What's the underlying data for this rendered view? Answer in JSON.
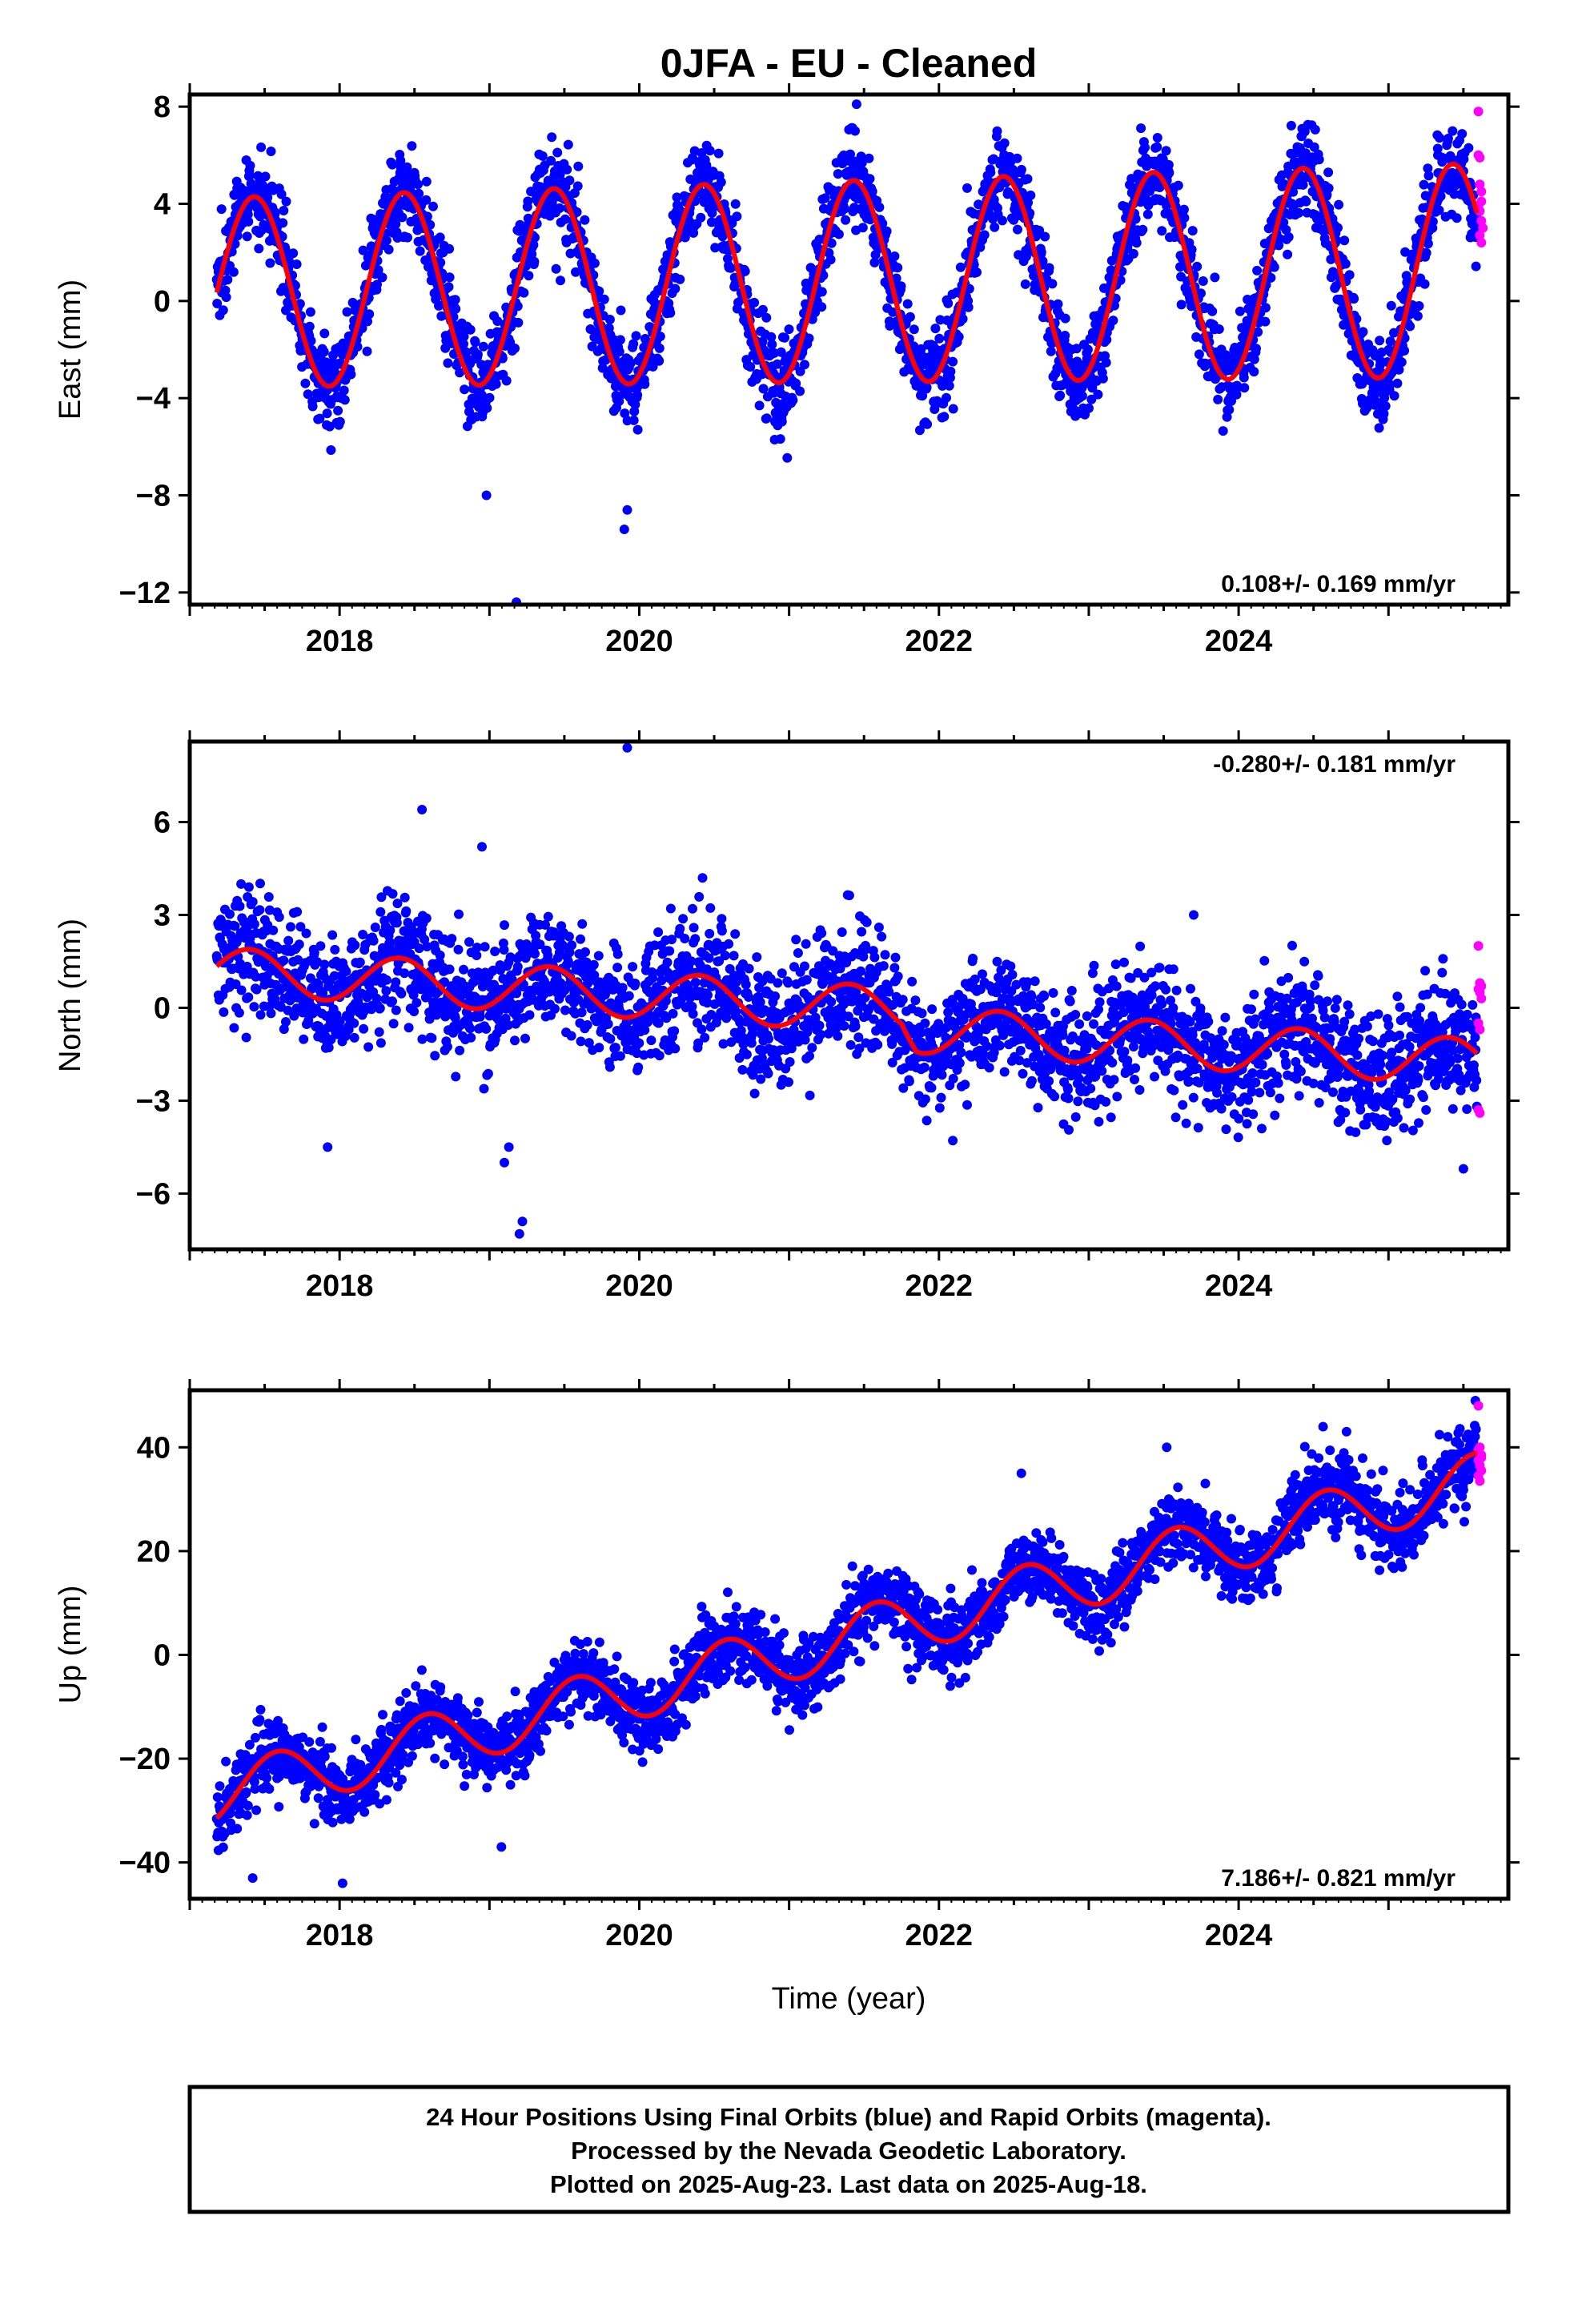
{
  "chart_data": {
    "type": "scatter",
    "title": "0JFA  - EU - Cleaned",
    "xlabel": "Time (year)",
    "colors": {
      "final": "#0000ff",
      "rapid": "#ff00ff",
      "model": "#ff0000",
      "frame": "#000000"
    },
    "xlim": [
      2017.0,
      2025.8
    ],
    "x_ticks": [
      "2018",
      "2020",
      "2022",
      "2024"
    ],
    "panels": [
      {
        "name": "east",
        "ylabel": "East (mm)",
        "ylim": [
          -12.5,
          8.5
        ],
        "y_ticks": [
          "8",
          "4",
          "0",
          "−4",
          "−8",
          "−12"
        ],
        "rate_text": "0.108+/- 0.169 mm/yr",
        "rate_position": "bottom-right",
        "model": {
          "offset": 0.35,
          "trend": 0.108,
          "amplitude": 3.9,
          "phase_year": 2017.43,
          "amp_growth": 0.06
        },
        "rapid_points": [
          [
            2025.6,
            7.8
          ],
          [
            2025.6,
            6.0
          ],
          [
            2025.61,
            5.9
          ],
          [
            2025.61,
            4.8
          ],
          [
            2025.62,
            4.5
          ],
          [
            2025.62,
            4.1
          ],
          [
            2025.6,
            3.9
          ],
          [
            2025.61,
            3.7
          ],
          [
            2025.62,
            3.3
          ],
          [
            2025.63,
            3.0
          ],
          [
            2025.61,
            2.7
          ],
          [
            2025.62,
            2.4
          ]
        ],
        "outliers": [
          [
            2019.18,
            -12.4
          ],
          [
            2019.9,
            -9.4
          ],
          [
            2019.92,
            -8.6
          ],
          [
            2018.98,
            -8.0
          ],
          [
            2021.45,
            8.1
          ],
          [
            2021.44,
            7.0
          ],
          [
            2025.33,
            6.0
          ],
          [
            2024.41,
            6.3
          ],
          [
            2020.45,
            6.4
          ]
        ]
      },
      {
        "name": "north",
        "ylabel": "North (mm)",
        "ylim": [
          -7.8,
          8.6
        ],
        "y_ticks": [
          "6",
          "3",
          "0",
          "−3",
          "−6"
        ],
        "rate_text": "-0.280+/- 0.181 mm/yr",
        "rate_position": "top-right",
        "model": {
          "offset": 1.2,
          "trend": -0.28,
          "amplitude": 0.75,
          "phase_year": 2017.4,
          "amp_growth": 0.0
        },
        "rapid_points": [
          [
            2025.6,
            2.0
          ],
          [
            2025.61,
            0.8
          ],
          [
            2025.62,
            0.7
          ],
          [
            2025.6,
            0.6
          ],
          [
            2025.61,
            0.5
          ],
          [
            2025.62,
            0.3
          ],
          [
            2025.6,
            -0.5
          ],
          [
            2025.61,
            -0.7
          ],
          [
            2025.6,
            -3.3
          ],
          [
            2025.61,
            -3.4
          ]
        ],
        "outliers": [
          [
            2019.92,
            8.4
          ],
          [
            2018.55,
            6.4
          ],
          [
            2018.95,
            5.2
          ],
          [
            2019.2,
            -7.3
          ],
          [
            2019.22,
            -6.9
          ],
          [
            2019.1,
            -5.0
          ],
          [
            2019.13,
            -4.5
          ],
          [
            2017.92,
            -4.5
          ],
          [
            2025.5,
            -5.2
          ],
          [
            2023.7,
            3.0
          ]
        ]
      },
      {
        "name": "up",
        "ylabel": "Up (mm)",
        "ylim": [
          -47,
          51
        ],
        "y_ticks": [
          "40",
          "20",
          "0",
          "−20",
          "−40"
        ],
        "rate_text": "7.186+/- 0.821 mm/yr",
        "rate_position": "bottom-right",
        "model": {
          "offset": -27.0,
          "trend": 7.186,
          "amplitude": 5.5,
          "phase_year": 2017.58,
          "amp_growth": 0.0
        },
        "rapid_points": [
          [
            2025.6,
            48.0
          ],
          [
            2025.61,
            40.0
          ],
          [
            2025.62,
            38.5
          ],
          [
            2025.6,
            37.5
          ],
          [
            2025.61,
            36.5
          ],
          [
            2025.62,
            35.5
          ],
          [
            2025.6,
            34.5
          ],
          [
            2025.61,
            33.5
          ],
          [
            2025.62,
            38.0
          ],
          [
            2025.6,
            39.5
          ]
        ],
        "outliers": [
          [
            2025.58,
            49.0
          ],
          [
            2023.52,
            40.0
          ],
          [
            2024.72,
            43.0
          ],
          [
            2018.02,
            -44.0
          ],
          [
            2017.42,
            -43.0
          ],
          [
            2019.08,
            -37.0
          ],
          [
            2022.55,
            35.0
          ]
        ]
      }
    ]
  },
  "footer": {
    "line1": "24 Hour Positions Using Final Orbits (blue) and Rapid Orbits (magenta).",
    "line2": "Processed by the Nevada Geodetic Laboratory.",
    "line3": "Plotted on 2025-Aug-23. Last data on 2025-Aug-18."
  }
}
